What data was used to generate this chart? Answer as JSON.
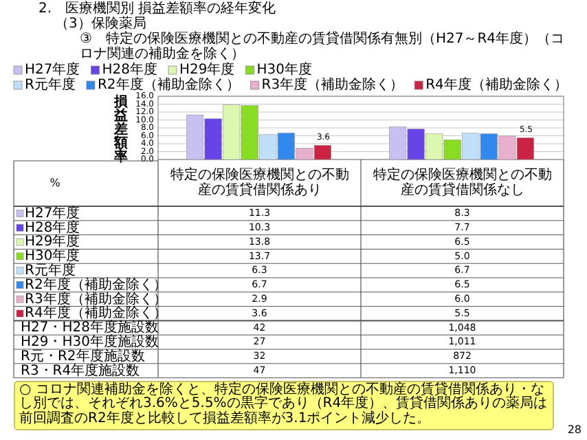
{
  "chart_data": {
    "type": "bar",
    "title": "2.　医療機関別 損益差額率の経年変化",
    "subtitle": "（3）保険薬局",
    "ylabel": "損益差額率",
    "categories": [
      "特定の保険医療機関との不動産の賃貸借関係あり",
      "特定の保険医療機関との不動産の賃貸借関係なし"
    ],
    "ylim": [
      0,
      16
    ],
    "yticks": [
      {
        "value": 0,
        "label": "0.0"
      },
      {
        "value": 2,
        "label": "2.0"
      },
      {
        "value": 4,
        "label": "4.0"
      },
      {
        "value": 6,
        "label": "6.0"
      },
      {
        "value": 8,
        "label": "8.0"
      },
      {
        "value": 10,
        "label": "10.0"
      },
      {
        "value": 12,
        "label": "12.0"
      },
      {
        "value": 14,
        "label": "14.0"
      },
      {
        "value": 16,
        "label": "16.0"
      }
    ],
    "grid": "y",
    "legend": "top",
    "series": [
      {
        "name": "H27年度",
        "color": "#c8c0f0",
        "values": [
          11.3,
          8.3
        ],
        "value_labels": [
          "11.3",
          "8.3"
        ]
      },
      {
        "name": "H28年度",
        "color": "#6644e8",
        "values": [
          10.3,
          7.7
        ],
        "value_labels": [
          "10.3",
          "7.7"
        ]
      },
      {
        "name": "H29年度",
        "color": "#dcf8b0",
        "values": [
          13.8,
          6.5
        ],
        "value_labels": [
          "13.8",
          "6.5"
        ]
      },
      {
        "name": "H30年度",
        "color": "#88dd22",
        "values": [
          13.7,
          5.0
        ],
        "value_labels": [
          "13.7",
          "5.0"
        ]
      },
      {
        "name": "R元年度",
        "color": "#bfe0f8",
        "values": [
          6.3,
          6.7
        ],
        "value_labels": [
          "6.3",
          "6.7"
        ]
      },
      {
        "name": "R2年度（補助金除く）",
        "color": "#3388ee",
        "values": [
          6.7,
          6.5
        ],
        "value_labels": [
          "6.7",
          "6.5"
        ]
      },
      {
        "name": "R3年度（補助金除く）",
        "color": "#e8b0cc",
        "values": [
          2.9,
          6.0
        ],
        "value_labels": [
          "2.9",
          "6.0"
        ]
      },
      {
        "name": "R4年度（補助金除く）",
        "color": "#cc2244",
        "values": [
          3.6,
          5.5
        ],
        "value_labels": [
          "3.6",
          "5.5"
        ]
      }
    ],
    "annotations": [
      "③　特定の保険医療機関との不動産の賃貸借関係有無別（H27～R4年度）（コロナ関連の補助金を除く）",
      "%",
      "H27・H28年度施設数",
      "42",
      "1,048",
      "H29・H30年度施設数",
      "27",
      "1,011",
      "R元・R2年度施設数",
      "32",
      "872",
      "R3・R4年度施設数",
      "47",
      "1,110",
      "○ コロナ関連補助金を除くと、特定の保険医療機関との不動産の賃貸借関係あり・なし別では、それぞれ3.6%と5.5%の黒字であり（R4年度）、賃貸借関係ありの薬局は前回調査のR2年度と比較して損益差額率が3.1ポイント減少した。",
      "28",
      "3.6",
      "5.5"
    ]
  }
}
